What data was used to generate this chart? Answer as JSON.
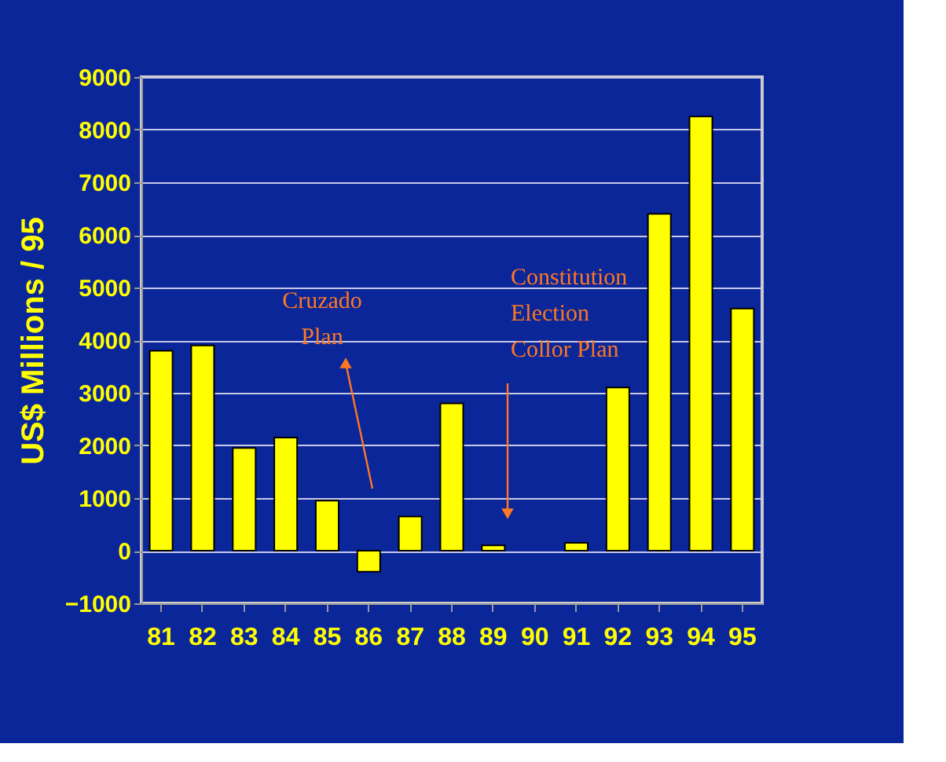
{
  "chart_data": {
    "type": "bar",
    "ylabel": "US$ Millions / 95",
    "categories": [
      "81",
      "82",
      "83",
      "84",
      "85",
      "86",
      "87",
      "88",
      "89",
      "90",
      "91",
      "92",
      "93",
      "94",
      "95"
    ],
    "values": [
      3800,
      3900,
      1950,
      2150,
      950,
      -400,
      650,
      2800,
      100,
      0,
      150,
      3100,
      6400,
      8250,
      4600
    ],
    "color": "#ffff00",
    "ylim": [
      -1000,
      9000
    ],
    "yticks": [
      -1000,
      0,
      1000,
      2000,
      3000,
      4000,
      5000,
      6000,
      7000,
      8000,
      9000
    ],
    "grid": "y",
    "annotations": [
      "Cruzado\nPlan",
      "Constitution\nElection\n Collor Plan"
    ]
  }
}
